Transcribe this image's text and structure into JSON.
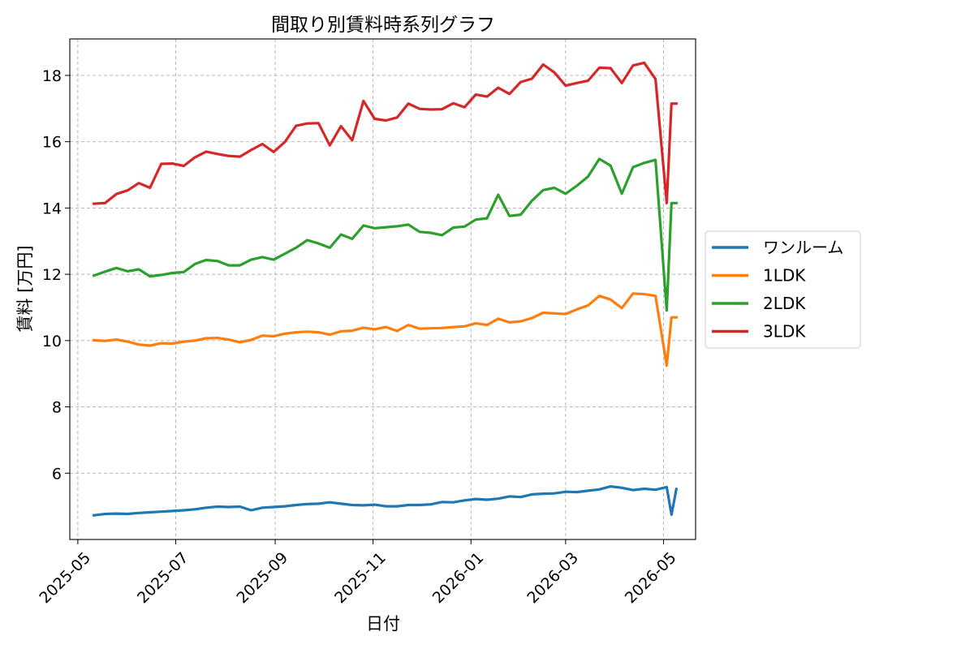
{
  "chart_data": {
    "type": "line",
    "title": "間取り別賃料時系列グラフ",
    "xlabel": "日付",
    "ylabel": "賃料 [万円]",
    "xlim": [
      "2025-04-26",
      "2026-05-21"
    ],
    "ylim": [
      4.0,
      19.1
    ],
    "yticks": [
      6,
      8,
      10,
      12,
      14,
      16,
      18
    ],
    "xticks": [
      "2025-05-01",
      "2025-07-01",
      "2025-09-01",
      "2025-11-01",
      "2026-01-01",
      "2026-03-01",
      "2026-05-01"
    ],
    "xtick_labels": [
      "2025-05",
      "2025-07",
      "2025-09",
      "2025-11",
      "2026-01",
      "2026-03",
      "2026-05"
    ],
    "grid": true,
    "legend_position": "right",
    "x": [
      "2025-05-11",
      "2025-05-18",
      "2025-05-25",
      "2025-06-01",
      "2025-06-08",
      "2025-06-15",
      "2025-06-22",
      "2025-06-29",
      "2025-07-06",
      "2025-07-13",
      "2025-07-20",
      "2025-07-27",
      "2025-08-03",
      "2025-08-10",
      "2025-08-17",
      "2025-08-24",
      "2025-08-31",
      "2025-09-07",
      "2025-09-14",
      "2025-09-21",
      "2025-09-28",
      "2025-10-05",
      "2025-10-12",
      "2025-10-19",
      "2025-10-26",
      "2025-11-02",
      "2025-11-09",
      "2025-11-16",
      "2025-11-23",
      "2025-11-30",
      "2025-12-07",
      "2025-12-14",
      "2025-12-21",
      "2025-12-28",
      "2026-01-04",
      "2026-01-11",
      "2026-01-18",
      "2026-01-25",
      "2026-02-01",
      "2026-02-08",
      "2026-02-15",
      "2026-02-22",
      "2026-03-01",
      "2026-03-08",
      "2026-03-15",
      "2026-03-22",
      "2026-03-29",
      "2026-04-05",
      "2026-04-12",
      "2026-04-19",
      "2026-04-26",
      "2026-05-03",
      "2026-05-06",
      "2026-05-09"
    ],
    "series": [
      {
        "name": "ワンルーム",
        "color": "#1f77b4",
        "values": [
          4.73,
          4.77,
          4.78,
          4.77,
          4.8,
          4.82,
          4.84,
          4.86,
          4.88,
          4.91,
          4.96,
          4.99,
          4.98,
          4.99,
          4.88,
          4.96,
          4.98,
          5.0,
          5.04,
          5.07,
          5.08,
          5.12,
          5.08,
          5.04,
          5.03,
          5.05,
          5.0,
          5.0,
          5.04,
          5.04,
          5.06,
          5.13,
          5.12,
          5.18,
          5.22,
          5.2,
          5.23,
          5.3,
          5.28,
          5.36,
          5.38,
          5.39,
          5.44,
          5.43,
          5.47,
          5.51,
          5.6,
          5.56,
          5.49,
          5.53,
          5.5,
          5.58,
          4.75,
          5.52
        ]
      },
      {
        "name": "1LDK",
        "color": "#ff7f0e",
        "values": [
          10.01,
          9.99,
          10.03,
          9.97,
          9.88,
          9.85,
          9.92,
          9.91,
          9.97,
          10.0,
          10.07,
          10.08,
          10.03,
          9.95,
          10.02,
          10.15,
          10.13,
          10.21,
          10.25,
          10.27,
          10.25,
          10.18,
          10.28,
          10.3,
          10.39,
          10.34,
          10.41,
          10.29,
          10.47,
          10.36,
          10.37,
          10.38,
          10.41,
          10.43,
          10.52,
          10.47,
          10.66,
          10.55,
          10.58,
          10.68,
          10.84,
          10.82,
          10.8,
          10.94,
          11.06,
          11.35,
          11.24,
          10.98,
          11.42,
          11.4,
          11.35,
          9.25,
          10.7,
          10.7
        ]
      },
      {
        "name": "2LDK",
        "color": "#2ca02c",
        "values": [
          11.96,
          12.08,
          12.19,
          12.09,
          12.15,
          11.94,
          11.98,
          12.04,
          12.07,
          12.31,
          12.43,
          12.4,
          12.27,
          12.27,
          12.44,
          12.52,
          12.44,
          12.62,
          12.8,
          13.03,
          12.93,
          12.8,
          13.2,
          13.07,
          13.47,
          13.39,
          13.42,
          13.45,
          13.5,
          13.28,
          13.25,
          13.18,
          13.41,
          13.44,
          13.65,
          13.69,
          14.4,
          13.76,
          13.8,
          14.22,
          14.54,
          14.61,
          14.43,
          14.67,
          14.95,
          15.48,
          15.28,
          14.43,
          15.23,
          15.36,
          15.45,
          10.91,
          14.15,
          14.15
        ]
      },
      {
        "name": "3LDK",
        "color": "#d62728",
        "values": [
          14.13,
          14.15,
          14.42,
          14.53,
          14.75,
          14.61,
          15.33,
          15.34,
          15.27,
          15.53,
          15.7,
          15.63,
          15.57,
          15.55,
          15.75,
          15.93,
          15.69,
          15.99,
          16.48,
          16.55,
          16.56,
          15.89,
          16.47,
          16.04,
          17.23,
          16.69,
          16.64,
          16.73,
          17.15,
          16.99,
          16.97,
          16.98,
          17.16,
          17.04,
          17.42,
          17.36,
          17.63,
          17.44,
          17.8,
          17.9,
          18.33,
          18.09,
          17.69,
          17.77,
          17.84,
          18.23,
          18.22,
          17.77,
          18.3,
          18.38,
          17.89,
          14.15,
          17.15,
          17.15
        ]
      }
    ]
  }
}
